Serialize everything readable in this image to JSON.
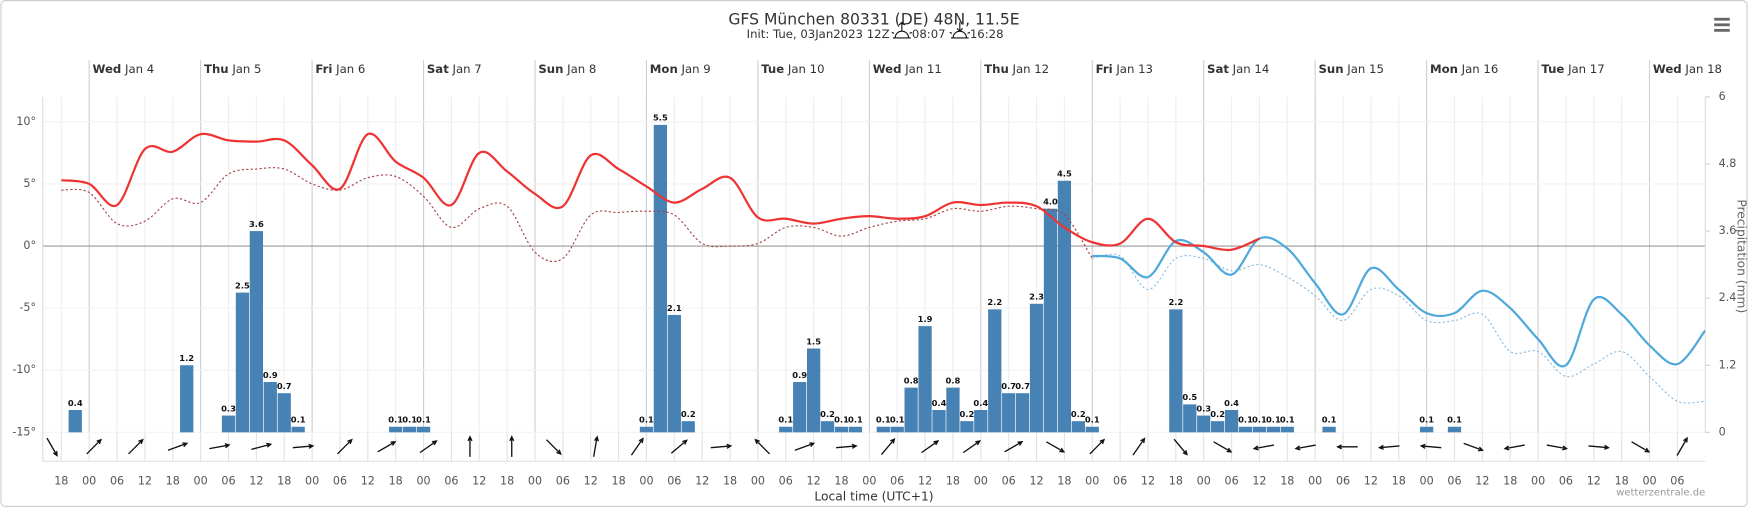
{
  "chart_data": {
    "type": "line",
    "title": "GFS München 80331 (DE) 48N, 11.5E",
    "subtitle": "Init: Tue, 03Jan2023 12Z",
    "sunrise": "08:07",
    "sunset": "16:28",
    "xlabel": "Local time (UTC+1)",
    "y2label": "Precipitation (mm)",
    "credit": "wetterzentrale.de",
    "xlim": [
      "2023-01-03T14:00",
      "2023-01-18T12:00"
    ],
    "ylim": [
      -15,
      12
    ],
    "yticks": [
      {
        "value": -15,
        "label": "-15°"
      },
      {
        "value": -10,
        "label": "-10°"
      },
      {
        "value": -5,
        "label": "-5°"
      },
      {
        "value": 0,
        "label": "0°"
      },
      {
        "value": 5,
        "label": "5°"
      },
      {
        "value": 10,
        "label": "10°"
      }
    ],
    "y2lim": [
      0,
      6
    ],
    "y2ticks": [
      0,
      1.2,
      2.4,
      3.6,
      4.8,
      6
    ],
    "grid": true,
    "days": [
      {
        "value": "2023-01-04",
        "weekday": "Wed",
        "label": "Jan 4"
      },
      {
        "value": "2023-01-05",
        "weekday": "Thu",
        "label": "Jan 5"
      },
      {
        "value": "2023-01-06",
        "weekday": "Fri",
        "label": "Jan 6"
      },
      {
        "value": "2023-01-07",
        "weekday": "Sat",
        "label": "Jan 7"
      },
      {
        "value": "2023-01-08",
        "weekday": "Sun",
        "label": "Jan 8"
      },
      {
        "value": "2023-01-09",
        "weekday": "Mon",
        "label": "Jan 9"
      },
      {
        "value": "2023-01-10",
        "weekday": "Tue",
        "label": "Jan 10"
      },
      {
        "value": "2023-01-11",
        "weekday": "Wed",
        "label": "Jan 11"
      },
      {
        "value": "2023-01-12",
        "weekday": "Thu",
        "label": "Jan 12"
      },
      {
        "value": "2023-01-13",
        "weekday": "Fri",
        "label": "Jan 13"
      },
      {
        "value": "2023-01-14",
        "weekday": "Sat",
        "label": "Jan 14"
      },
      {
        "value": "2023-01-15",
        "weekday": "Sun",
        "label": "Jan 15"
      },
      {
        "value": "2023-01-16",
        "weekday": "Mon",
        "label": "Jan 16"
      },
      {
        "value": "2023-01-17",
        "weekday": "Tue",
        "label": "Jan 17"
      },
      {
        "value": "2023-01-18",
        "weekday": "Wed",
        "label": "Jan 18"
      }
    ],
    "xticks": [
      {
        "value": "2023-01-03T18:00",
        "label": "18"
      },
      {
        "value": "2023-01-04T00:00",
        "label": "00"
      },
      {
        "value": "2023-01-04T06:00",
        "label": "06"
      },
      {
        "value": "2023-01-04T12:00",
        "label": "12"
      },
      {
        "value": "2023-01-04T18:00",
        "label": "18"
      },
      {
        "value": "2023-01-05T00:00",
        "label": "00"
      },
      {
        "value": "2023-01-05T06:00",
        "label": "06"
      },
      {
        "value": "2023-01-05T12:00",
        "label": "12"
      },
      {
        "value": "2023-01-05T18:00",
        "label": "18"
      },
      {
        "value": "2023-01-06T00:00",
        "label": "00"
      },
      {
        "value": "2023-01-06T06:00",
        "label": "06"
      },
      {
        "value": "2023-01-06T12:00",
        "label": "12"
      },
      {
        "value": "2023-01-06T18:00",
        "label": "18"
      },
      {
        "value": "2023-01-07T00:00",
        "label": "00"
      },
      {
        "value": "2023-01-07T06:00",
        "label": "06"
      },
      {
        "value": "2023-01-07T12:00",
        "label": "12"
      },
      {
        "value": "2023-01-07T18:00",
        "label": "18"
      },
      {
        "value": "2023-01-08T00:00",
        "label": "00"
      },
      {
        "value": "2023-01-08T06:00",
        "label": "06"
      },
      {
        "value": "2023-01-08T12:00",
        "label": "12"
      },
      {
        "value": "2023-01-08T18:00",
        "label": "18"
      },
      {
        "value": "2023-01-09T00:00",
        "label": "00"
      },
      {
        "value": "2023-01-09T06:00",
        "label": "06"
      },
      {
        "value": "2023-01-09T12:00",
        "label": "12"
      },
      {
        "value": "2023-01-09T18:00",
        "label": "18"
      },
      {
        "value": "2023-01-10T00:00",
        "label": "00"
      },
      {
        "value": "2023-01-10T06:00",
        "label": "06"
      },
      {
        "value": "2023-01-10T12:00",
        "label": "12"
      },
      {
        "value": "2023-01-10T18:00",
        "label": "18"
      },
      {
        "value": "2023-01-11T00:00",
        "label": "00"
      },
      {
        "value": "2023-01-11T06:00",
        "label": "06"
      },
      {
        "value": "2023-01-11T12:00",
        "label": "12"
      },
      {
        "value": "2023-01-11T18:00",
        "label": "18"
      },
      {
        "value": "2023-01-12T00:00",
        "label": "00"
      },
      {
        "value": "2023-01-12T06:00",
        "label": "06"
      },
      {
        "value": "2023-01-12T12:00",
        "label": "12"
      },
      {
        "value": "2023-01-12T18:00",
        "label": "18"
      },
      {
        "value": "2023-01-13T00:00",
        "label": "00"
      },
      {
        "value": "2023-01-13T06:00",
        "label": "06"
      },
      {
        "value": "2023-01-13T12:00",
        "label": "12"
      },
      {
        "value": "2023-01-13T18:00",
        "label": "18"
      },
      {
        "value": "2023-01-14T00:00",
        "label": "00"
      },
      {
        "value": "2023-01-14T06:00",
        "label": "06"
      },
      {
        "value": "2023-01-14T12:00",
        "label": "12"
      },
      {
        "value": "2023-01-14T18:00",
        "label": "18"
      },
      {
        "value": "2023-01-15T00:00",
        "label": "00"
      },
      {
        "value": "2023-01-15T06:00",
        "label": "06"
      },
      {
        "value": "2023-01-15T12:00",
        "label": "12"
      },
      {
        "value": "2023-01-15T18:00",
        "label": "18"
      },
      {
        "value": "2023-01-16T00:00",
        "label": "00"
      },
      {
        "value": "2023-01-16T06:00",
        "label": "06"
      },
      {
        "value": "2023-01-16T12:00",
        "label": "12"
      },
      {
        "value": "2023-01-16T18:00",
        "label": "18"
      },
      {
        "value": "2023-01-17T00:00",
        "label": "00"
      },
      {
        "value": "2023-01-17T06:00",
        "label": "06"
      },
      {
        "value": "2023-01-17T12:00",
        "label": "12"
      },
      {
        "value": "2023-01-17T18:00",
        "label": "18"
      },
      {
        "value": "2023-01-18T00:00",
        "label": "00"
      },
      {
        "value": "2023-01-18T06:00",
        "label": "06"
      }
    ],
    "x": [
      "2023-01-03T18:00",
      "2023-01-04T00:00",
      "2023-01-04T06:00",
      "2023-01-04T12:00",
      "2023-01-04T18:00",
      "2023-01-05T00:00",
      "2023-01-05T06:00",
      "2023-01-05T12:00",
      "2023-01-05T18:00",
      "2023-01-06T00:00",
      "2023-01-06T06:00",
      "2023-01-06T12:00",
      "2023-01-06T18:00",
      "2023-01-07T00:00",
      "2023-01-07T06:00",
      "2023-01-07T12:00",
      "2023-01-07T18:00",
      "2023-01-08T00:00",
      "2023-01-08T06:00",
      "2023-01-08T12:00",
      "2023-01-08T18:00",
      "2023-01-09T00:00",
      "2023-01-09T06:00",
      "2023-01-09T12:00",
      "2023-01-09T18:00",
      "2023-01-10T00:00",
      "2023-01-10T06:00",
      "2023-01-10T12:00",
      "2023-01-10T18:00",
      "2023-01-11T00:00",
      "2023-01-11T06:00",
      "2023-01-11T12:00",
      "2023-01-11T18:00",
      "2023-01-12T00:00",
      "2023-01-12T06:00",
      "2023-01-12T12:00",
      "2023-01-12T18:00",
      "2023-01-13T00:00",
      "2023-01-13T06:00",
      "2023-01-13T12:00",
      "2023-01-13T18:00",
      "2023-01-14T00:00",
      "2023-01-14T06:00",
      "2023-01-14T12:00",
      "2023-01-14T18:00",
      "2023-01-15T00:00",
      "2023-01-15T06:00",
      "2023-01-15T12:00",
      "2023-01-15T18:00",
      "2023-01-16T00:00",
      "2023-01-16T06:00",
      "2023-01-16T12:00",
      "2023-01-16T18:00",
      "2023-01-17T00:00",
      "2023-01-17T06:00",
      "2023-01-17T12:00",
      "2023-01-17T18:00",
      "2023-01-18T00:00",
      "2023-01-18T06:00",
      "2023-01-18T12:00"
    ],
    "series": [
      {
        "type": "bar",
        "axis": "y2",
        "color": "#4682b4",
        "x": [
          "2023-01-03T21:00",
          "2023-01-04T21:00",
          "2023-01-05T06:00",
          "2023-01-05T09:00",
          "2023-01-05T12:00",
          "2023-01-05T15:00",
          "2023-01-05T18:00",
          "2023-01-05T21:00",
          "2023-01-06T18:00",
          "2023-01-06T21:00",
          "2023-01-07T00:00",
          "2023-01-09T00:00",
          "2023-01-09T03:00",
          "2023-01-09T06:00",
          "2023-01-09T09:00",
          "2023-01-10T06:00",
          "2023-01-10T09:00",
          "2023-01-10T12:00",
          "2023-01-10T15:00",
          "2023-01-10T18:00",
          "2023-01-10T21:00",
          "2023-01-11T03:00",
          "2023-01-11T06:00",
          "2023-01-11T09:00",
          "2023-01-11T12:00",
          "2023-01-11T15:00",
          "2023-01-11T18:00",
          "2023-01-11T21:00",
          "2023-01-12T00:00",
          "2023-01-12T03:00",
          "2023-01-12T06:00",
          "2023-01-12T09:00",
          "2023-01-12T12:00",
          "2023-01-12T15:00",
          "2023-01-12T18:00",
          "2023-01-12T21:00",
          "2023-01-13T00:00",
          "2023-01-13T18:00",
          "2023-01-13T21:00",
          "2023-01-14T00:00",
          "2023-01-14T03:00",
          "2023-01-14T06:00",
          "2023-01-14T09:00",
          "2023-01-14T12:00",
          "2023-01-14T15:00",
          "2023-01-14T18:00",
          "2023-01-15T03:00",
          "2023-01-16T00:00",
          "2023-01-16T06:00"
        ],
        "values": [
          0.4,
          1.2,
          0.3,
          2.5,
          3.6,
          0.9,
          0.7,
          0.1,
          0.1,
          0.1,
          0.1,
          0.1,
          5.5,
          2.1,
          0.2,
          0.1,
          0.9,
          1.5,
          0.2,
          0.1,
          0.1,
          0.1,
          0.1,
          0.8,
          1.9,
          0.4,
          0.8,
          0.2,
          0.4,
          2.2,
          0.7,
          0.7,
          2.3,
          4.0,
          4.5,
          0.2,
          0.1,
          2.2,
          0.5,
          0.3,
          0.2,
          0.4,
          0.1,
          0.1,
          0.1,
          0.1,
          0.1,
          0.1,
          0.1
        ],
        "value_labels": [
          "0.4",
          "1.2",
          "0.3",
          "2.5",
          "3.6",
          "0.9",
          "0.7",
          "0.1",
          "0.1",
          "0.1",
          "0.1",
          "0.1",
          "5.5",
          "2.1",
          "0.2",
          "0.1",
          "0.9",
          "1.5",
          "0.2",
          "0.1",
          "0.1",
          "0.1",
          "0.1",
          "0.8",
          "1.9",
          "0.4",
          "0.8",
          "0.2",
          "0.4",
          "2.2",
          "0.7",
          "0.7",
          "2.3",
          "4.0",
          "4.5",
          "0.2",
          "0.1",
          "2.2",
          "0.5",
          "0.3",
          "0.2",
          "0.4",
          "0.1",
          "0.1",
          "0.1",
          "0.1",
          "0.1",
          "0.1",
          "0.1"
        ]
      },
      {
        "color": "#a04545",
        "dash": true,
        "values": [
          4.5,
          4.3,
          1.8,
          2.0,
          3.8,
          3.5,
          5.8,
          6.2,
          6.2,
          5.0,
          4.5,
          5.5,
          5.6,
          4.0,
          1.5,
          3.0,
          3.2,
          -0.5,
          -1.0,
          2.5,
          2.7,
          2.8,
          2.5,
          0.2,
          0.0,
          0.2,
          1.5,
          1.5,
          0.8,
          1.5,
          2.0,
          2.2,
          3.0,
          2.8,
          3.2,
          3.0,
          2.5,
          -1.0,
          null,
          null,
          null,
          null,
          null,
          null,
          null,
          null,
          null,
          null,
          null,
          null,
          null,
          null,
          null,
          null,
          null,
          null,
          null,
          null,
          null,
          null
        ]
      },
      {
        "color": "#8cbde0",
        "dash": true,
        "values": [
          null,
          null,
          null,
          null,
          null,
          null,
          null,
          null,
          null,
          null,
          null,
          null,
          null,
          null,
          null,
          null,
          null,
          null,
          null,
          null,
          null,
          null,
          null,
          null,
          null,
          null,
          null,
          null,
          null,
          null,
          null,
          null,
          null,
          null,
          null,
          null,
          null,
          -1.0,
          -0.8,
          -3.5,
          -1.0,
          -1.0,
          -2.0,
          -1.5,
          -2.5,
          -4.0,
          -6.0,
          -3.5,
          -4.0,
          -6.0,
          -6.0,
          -5.5,
          -8.5,
          -8.5,
          -10.5,
          -9.5,
          -8.5,
          -10.5,
          -12.5,
          -12.5
        ]
      },
      {
        "color": "#4fa9db",
        "values": [
          null,
          null,
          null,
          null,
          null,
          null,
          null,
          null,
          null,
          null,
          null,
          null,
          null,
          null,
          null,
          null,
          null,
          null,
          null,
          null,
          null,
          null,
          null,
          null,
          null,
          null,
          null,
          null,
          null,
          null,
          null,
          null,
          null,
          null,
          null,
          null,
          null,
          -0.8,
          -1.0,
          -2.5,
          0.4,
          -0.5,
          -2.3,
          0.6,
          -0.2,
          -3.0,
          -5.5,
          -1.8,
          -3.5,
          -5.4,
          -5.4,
          -3.6,
          -5.0,
          -7.5,
          -9.6,
          -4.3,
          -5.5,
          -8.0,
          -9.5,
          -6.8
        ]
      },
      {
        "color": "#ee3333",
        "values": [
          5.3,
          5.0,
          3.3,
          7.8,
          7.6,
          9.0,
          8.5,
          8.4,
          8.5,
          6.5,
          4.6,
          9.0,
          6.8,
          5.5,
          3.3,
          7.5,
          6.0,
          4.2,
          3.2,
          7.3,
          6.2,
          4.8,
          3.5,
          4.6,
          5.5,
          2.3,
          2.2,
          1.8,
          2.2,
          2.4,
          2.2,
          2.4,
          3.5,
          3.3,
          3.5,
          3.2,
          1.5,
          0.3,
          0.2,
          2.2,
          0.3,
          0.0,
          -0.3,
          0.6,
          null,
          null,
          null,
          null,
          null,
          null,
          null,
          null,
          null,
          null,
          null,
          null,
          null,
          null,
          null,
          null
        ]
      }
    ],
    "wind": {
      "color": "#111111",
      "x": [
        "2023-01-03T16:00",
        "2023-01-04T01:00",
        "2023-01-04T10:00",
        "2023-01-04T19:00",
        "2023-01-05T04:00",
        "2023-01-05T13:00",
        "2023-01-05T22:00",
        "2023-01-06T07:00",
        "2023-01-06T16:00",
        "2023-01-07T01:00",
        "2023-01-07T10:00",
        "2023-01-07T19:00",
        "2023-01-08T04:00",
        "2023-01-08T13:00",
        "2023-01-08T22:00",
        "2023-01-09T07:00",
        "2023-01-09T16:00",
        "2023-01-10T01:00",
        "2023-01-10T10:00",
        "2023-01-10T19:00",
        "2023-01-11T04:00",
        "2023-01-11T13:00",
        "2023-01-11T22:00",
        "2023-01-12T07:00",
        "2023-01-12T16:00",
        "2023-01-13T01:00",
        "2023-01-13T10:00",
        "2023-01-13T19:00",
        "2023-01-14T04:00",
        "2023-01-14T13:00",
        "2023-01-14T22:00",
        "2023-01-15T07:00",
        "2023-01-15T16:00",
        "2023-01-16T01:00",
        "2023-01-16T10:00",
        "2023-01-16T19:00",
        "2023-01-17T04:00",
        "2023-01-17T13:00",
        "2023-01-17T22:00",
        "2023-01-18T07:00"
      ],
      "direction": [
        330,
        225,
        225,
        250,
        260,
        255,
        265,
        225,
        240,
        235,
        180,
        180,
        315,
        190,
        215,
        230,
        265,
        135,
        250,
        265,
        220,
        235,
        235,
        240,
        300,
        225,
        215,
        320,
        300,
        80,
        80,
        90,
        85,
        95,
        290,
        80,
        280,
        275,
        300,
        210
      ]
    }
  }
}
